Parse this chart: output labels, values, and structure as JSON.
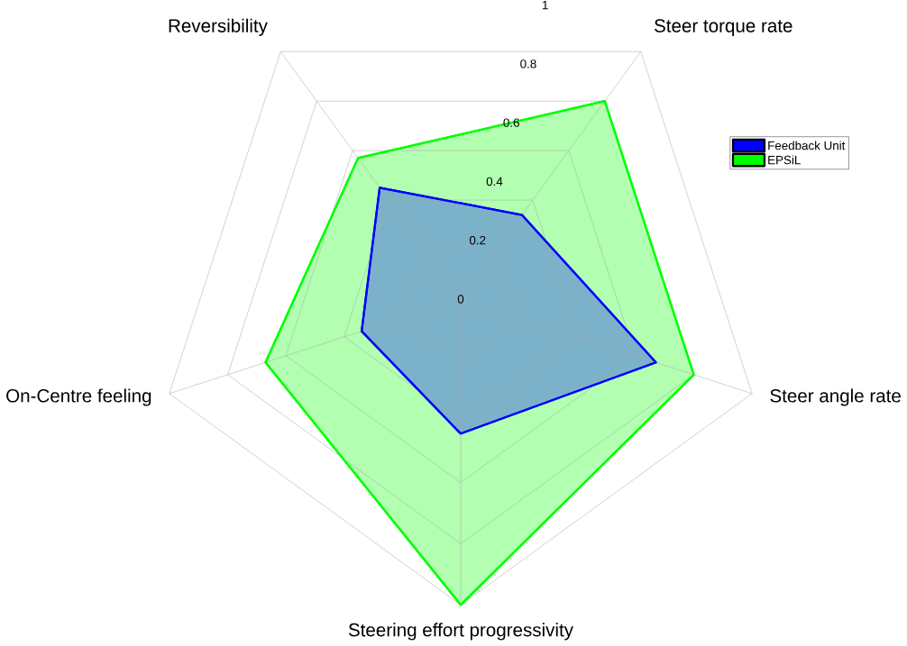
{
  "chart_data": {
    "type": "radar",
    "categories": [
      "Steer torque rate",
      "Steer angle rate",
      "Steering effort progressivity",
      "On-Centre feeling",
      "Reversibility"
    ],
    "series": [
      {
        "name": "Feedback Unit",
        "color": "#0000ff",
        "values": [
          0.34,
          0.67,
          0.44,
          0.34,
          0.45
        ]
      },
      {
        "name": "EPSiL",
        "color": "#00ff00",
        "values": [
          0.8,
          0.8,
          1.0,
          0.67,
          0.57
        ]
      }
    ],
    "ylim": [
      0,
      1
    ],
    "yticks": [
      0,
      0.2,
      0.4,
      0.6,
      0.8,
      1
    ],
    "grid": true,
    "legend": "top right"
  }
}
